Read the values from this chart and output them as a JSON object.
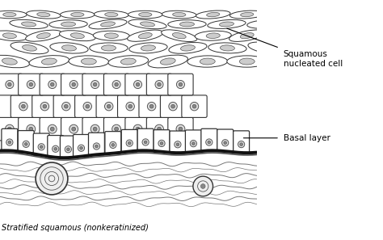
{
  "title": "Stratified squamous (nonkeratinized)",
  "label_squamous": "Squamous\nnucleated cell",
  "label_basal": "Basal layer",
  "bg_color": "#ffffff",
  "outline_color": "#333333",
  "nucleus_ring_color": "#555555",
  "basal_line_color": "#111111",
  "fig_width": 4.74,
  "fig_height": 2.97,
  "dpi": 100
}
